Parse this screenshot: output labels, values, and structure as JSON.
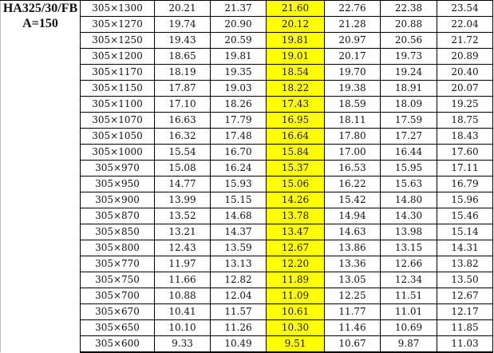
{
  "title_lines": [
    "HA325/30/FB",
    "A=150"
  ],
  "highlight_color": "#ffff00",
  "highlighted_column_index": 2,
  "rows": [
    [
      "305×1300",
      "20.21",
      "21.37",
      "21.60",
      "22.76",
      "22.38",
      "23.54"
    ],
    [
      "305×1270",
      "19.74",
      "20.90",
      "20.12",
      "21.28",
      "20.88",
      "22.04"
    ],
    [
      "305×1250",
      "19.43",
      "20.59",
      "19.81",
      "20.97",
      "20.56",
      "21.72"
    ],
    [
      "305×1200",
      "18.65",
      "19.81",
      "19.01",
      "20.17",
      "19.73",
      "20.89"
    ],
    [
      "305×1170",
      "18.19",
      "19.35",
      "18.54",
      "19.70",
      "19.24",
      "20.40"
    ],
    [
      "305×1150",
      "17.87",
      "19.03",
      "18.22",
      "19.38",
      "18.91",
      "20.07"
    ],
    [
      "305×1100",
      "17.10",
      "18.26",
      "17.43",
      "18.59",
      "18.09",
      "19.25"
    ],
    [
      "305×1070",
      "16.63",
      "17.79",
      "16.95",
      "18.11",
      "17.59",
      "18.75"
    ],
    [
      "305×1050",
      "16.32",
      "17.48",
      "16.64",
      "17.80",
      "17.27",
      "18.43"
    ],
    [
      "305×1000",
      "15.54",
      "16.70",
      "15.84",
      "17.00",
      "16.44",
      "17.60"
    ],
    [
      "305×970",
      "15.08",
      "16.24",
      "15.37",
      "16.53",
      "15.95",
      "17.11"
    ],
    [
      "305×950",
      "14.77",
      "15.93",
      "15.06",
      "16.22",
      "15.63",
      "16.79"
    ],
    [
      "305×900",
      "13.99",
      "15.15",
      "14.26",
      "15.42",
      "14.80",
      "15.96"
    ],
    [
      "305×870",
      "13.52",
      "14.68",
      "13.78",
      "14.94",
      "14.30",
      "15.46"
    ],
    [
      "305×850",
      "13.21",
      "14.37",
      "13.47",
      "14.63",
      "13.98",
      "15.14"
    ],
    [
      "305×800",
      "12.43",
      "13.59",
      "12.67",
      "13.86",
      "13.15",
      "14.31"
    ],
    [
      "305×770",
      "11.97",
      "13.13",
      "12.20",
      "13.36",
      "12.66",
      "13.82"
    ],
    [
      "305×750",
      "11.66",
      "12.82",
      "11.89",
      "13.05",
      "12.34",
      "13.50"
    ],
    [
      "305×700",
      "10.88",
      "12.04",
      "11.09",
      "12.25",
      "11.51",
      "12.67"
    ],
    [
      "305×670",
      "10.41",
      "11.57",
      "10.61",
      "11.77",
      "11.01",
      "12.17"
    ],
    [
      "305×650",
      "10.10",
      "11.26",
      "10.30",
      "11.46",
      "10.69",
      "11.85"
    ],
    [
      "305×600",
      "9.33",
      "10.49",
      "9.51",
      "10.67",
      "9.87",
      "11.03"
    ]
  ]
}
